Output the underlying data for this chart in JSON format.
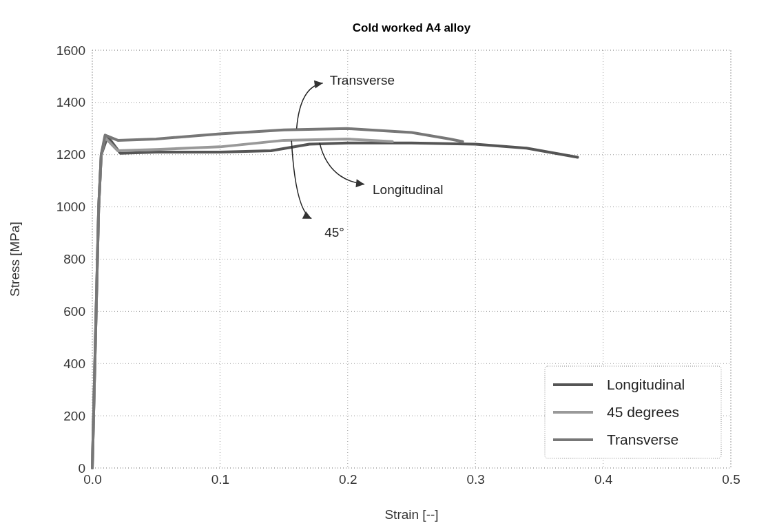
{
  "chart_data": {
    "type": "line",
    "title": "Cold worked A4 alloy",
    "xlabel": "Strain [--]",
    "ylabel": "Stress [MPa]",
    "xlim": [
      0,
      0.5
    ],
    "ylim": [
      0,
      1600
    ],
    "xticks": [
      {
        "value": 0,
        "label": "0.0"
      },
      0.1,
      0.2,
      0.3,
      0.4,
      0.5
    ],
    "yticks": [
      0,
      200,
      400,
      600,
      800,
      1000,
      1200,
      1400,
      1600
    ],
    "grid": true,
    "legend": "bottom right",
    "marker": "none",
    "line_style": "solid",
    "series": [
      {
        "name": "Longitudinal",
        "color": "#555555",
        "x": [
          0,
          0.003,
          0.005,
          0.007,
          0.012,
          0.022,
          0.05,
          0.1,
          0.14,
          0.17,
          0.2,
          0.25,
          0.3,
          0.34,
          0.38
        ],
        "values": [
          0,
          600,
          1000,
          1200,
          1270,
          1205,
          1210,
          1210,
          1215,
          1240,
          1245,
          1245,
          1240,
          1225,
          1190
        ]
      },
      {
        "name": "45 degrees",
        "color": "#999999",
        "x": [
          0,
          0.003,
          0.005,
          0.007,
          0.01,
          0.02,
          0.05,
          0.1,
          0.15,
          0.2,
          0.235
        ],
        "values": [
          0,
          600,
          1000,
          1200,
          1265,
          1215,
          1220,
          1230,
          1255,
          1260,
          1250
        ]
      },
      {
        "name": "Transverse",
        "color": "#777777",
        "x": [
          0,
          0.003,
          0.005,
          0.007,
          0.01,
          0.02,
          0.05,
          0.1,
          0.15,
          0.2,
          0.25,
          0.28,
          0.29
        ],
        "values": [
          0,
          600,
          1000,
          1200,
          1275,
          1255,
          1260,
          1280,
          1295,
          1300,
          1285,
          1260,
          1250
        ]
      }
    ],
    "annotations": [
      {
        "text": "Transverse",
        "x": 0.16,
        "y": 1300
      },
      {
        "text": "Longitudinal",
        "x": 0.178,
        "y": 1245
      },
      {
        "text": "45°",
        "x": 0.156,
        "y": 1253
      }
    ]
  }
}
